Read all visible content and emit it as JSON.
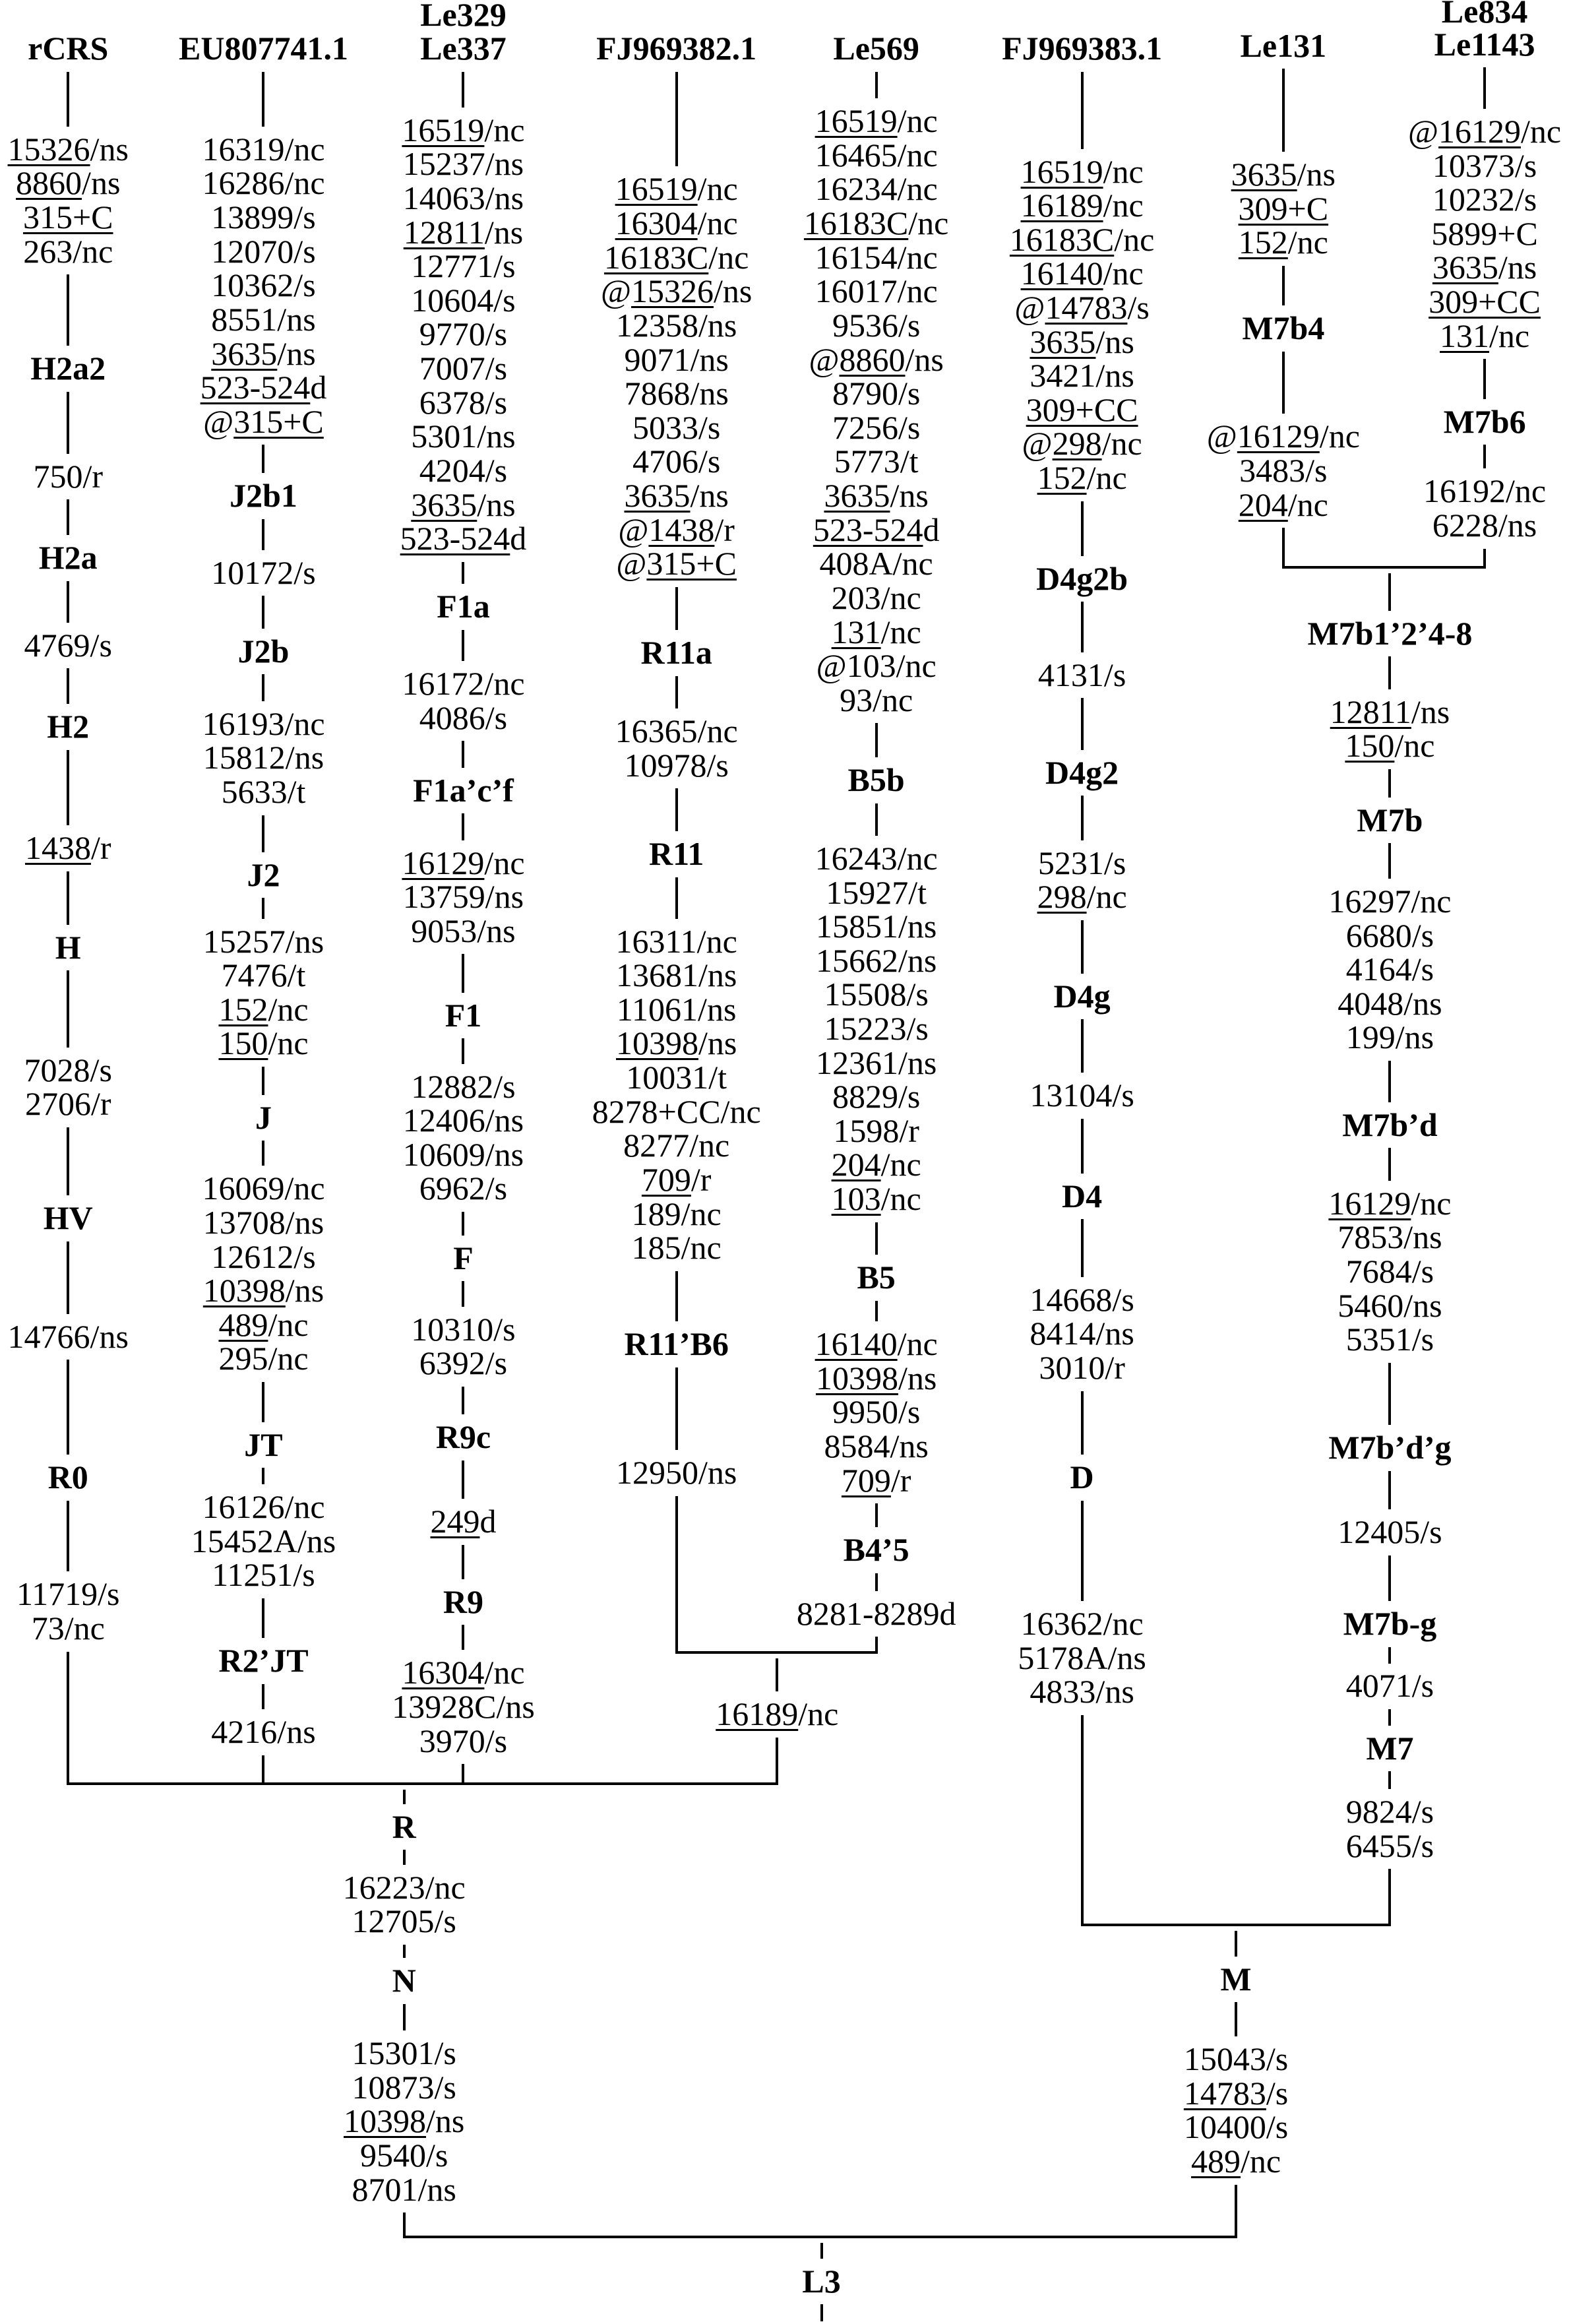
{
  "colors": {
    "ink": "#000000",
    "background": "#ffffff"
  },
  "leaves": [
    {
      "id": "rcrs",
      "header": [
        "rCRS"
      ],
      "items": [
        {
          "muts": [
            {
              "m": "15326/ns",
              "u": "15326"
            },
            {
              "m": "8860/ns",
              "u": "8860"
            },
            {
              "m": "315+C",
              "u": "315+C"
            },
            "263/nc"
          ]
        },
        {
          "node": "H2a2"
        },
        {
          "muts": [
            "750/r"
          ]
        },
        {
          "node": "H2a"
        },
        {
          "muts": [
            "4769/s"
          ]
        },
        {
          "node": "H2"
        },
        {
          "muts": [
            {
              "m": "1438/r",
              "u": "1438"
            }
          ]
        },
        {
          "node": "H"
        },
        {
          "muts": [
            "7028/s",
            "2706/r"
          ]
        },
        {
          "node": "HV"
        },
        {
          "muts": [
            "14766/ns"
          ]
        },
        {
          "node": "R0"
        },
        {
          "muts": [
            "11719/s",
            "73/nc"
          ]
        }
      ]
    },
    {
      "id": "eu807741",
      "header": [
        "EU807741.1"
      ],
      "items": [
        {
          "muts": [
            "16319/nc",
            "16286/nc",
            "13899/s",
            "12070/s",
            "10362/s",
            "8551/ns",
            {
              "m": "3635/ns",
              "u": "3635"
            },
            {
              "m": "523-524d",
              "u": "523-524"
            },
            {
              "m": "@315+C",
              "u": "315+C"
            }
          ]
        },
        {
          "node": "J2b1"
        },
        {
          "muts": [
            "10172/s"
          ]
        },
        {
          "node": "J2b"
        },
        {
          "muts": [
            "16193/nc",
            "15812/ns",
            "5633/t"
          ]
        },
        {
          "node": "J2"
        },
        {
          "muts": [
            "15257/ns",
            "7476/t",
            {
              "m": "152/nc",
              "u": "152"
            },
            {
              "m": "150/nc",
              "u": "150"
            }
          ]
        },
        {
          "node": "J"
        },
        {
          "muts": [
            "16069/nc",
            "13708/ns",
            "12612/s",
            {
              "m": "10398/ns",
              "u": "10398"
            },
            {
              "m": "489/nc",
              "u": "489"
            },
            "295/nc"
          ]
        },
        {
          "node": "JT"
        },
        {
          "muts": [
            "16126/nc",
            "15452A/ns",
            "11251/s"
          ]
        },
        {
          "node": "R2’JT"
        },
        {
          "muts": [
            "4216/ns"
          ]
        }
      ]
    },
    {
      "id": "le329",
      "header": [
        "Le329",
        "Le337"
      ],
      "items": [
        {
          "muts": [
            {
              "m": "16519/nc",
              "u": "16519"
            },
            "15237/ns",
            "14063/ns",
            {
              "m": "12811/ns",
              "u": "12811"
            },
            "12771/s",
            "10604/s",
            "9770/s",
            "7007/s",
            "6378/s",
            "5301/ns",
            "4204/s",
            {
              "m": "3635/ns",
              "u": "3635"
            },
            {
              "m": "523-524d",
              "u": "523-524"
            }
          ]
        },
        {
          "node": "F1a"
        },
        {
          "muts": [
            "16172/nc",
            "4086/s"
          ]
        },
        {
          "node": "F1a’c’f"
        },
        {
          "muts": [
            {
              "m": "16129/nc",
              "u": "16129"
            },
            "13759/ns",
            "9053/ns"
          ]
        },
        {
          "node": "F1"
        },
        {
          "muts": [
            "12882/s",
            "12406/ns",
            "10609/ns",
            "6962/s"
          ]
        },
        {
          "node": "F"
        },
        {
          "muts": [
            "10310/s",
            "6392/s"
          ]
        },
        {
          "node": "R9c"
        },
        {
          "muts": [
            {
              "m": "249d",
              "u": "249"
            }
          ]
        },
        {
          "node": "R9"
        },
        {
          "muts": [
            {
              "m": "16304/nc",
              "u": "16304"
            },
            "13928C/ns",
            "3970/s"
          ]
        }
      ]
    },
    {
      "id": "fj969382",
      "header": [
        "FJ969382.1"
      ],
      "items": [
        {
          "muts": [
            {
              "m": "16519/nc",
              "u": "16519"
            },
            {
              "m": "16304/nc",
              "u": "16304"
            },
            {
              "m": "16183C/nc",
              "u": "16183C"
            },
            {
              "m": "@15326/ns",
              "u": "15326"
            },
            "12358/ns",
            "9071/ns",
            "7868/ns",
            "5033/s",
            "4706/s",
            {
              "m": "3635/ns",
              "u": "3635"
            },
            {
              "m": "@1438/r",
              "u": "1438"
            },
            {
              "m": "@315+C",
              "u": "315+C"
            }
          ]
        },
        {
          "node": "R11a"
        },
        {
          "muts": [
            "16365/nc",
            "10978/s"
          ]
        },
        {
          "node": "R11"
        },
        {
          "muts": [
            "16311/nc",
            "13681/ns",
            "11061/ns",
            {
              "m": "10398/ns",
              "u": "10398"
            },
            "10031/t",
            "8278+CC/nc",
            "8277/nc",
            {
              "m": "709/r",
              "u": "709"
            },
            "189/nc",
            "185/nc"
          ]
        },
        {
          "node": "R11’B6"
        },
        {
          "muts": [
            "12950/ns"
          ]
        }
      ]
    },
    {
      "id": "le569",
      "header": [
        "Le569"
      ],
      "items": [
        {
          "muts": [
            {
              "m": "16519/nc",
              "u": "16519"
            },
            "16465/nc",
            "16234/nc",
            {
              "m": "16183C/nc",
              "u": "16183C"
            },
            "16154/nc",
            "16017/nc",
            "9536/s",
            {
              "m": "@8860/ns",
              "u": "8860"
            },
            "8790/s",
            "7256/s",
            "5773/t",
            {
              "m": "3635/ns",
              "u": "3635"
            },
            {
              "m": "523-524d",
              "u": "523-524"
            },
            "408A/nc",
            "203/nc",
            {
              "m": "131/nc",
              "u": "131"
            },
            "@103/nc",
            "93/nc"
          ]
        },
        {
          "node": "B5b"
        },
        {
          "muts": [
            "16243/nc",
            "15927/t",
            "15851/ns",
            "15662/ns",
            "15508/s",
            "15223/s",
            "12361/ns",
            "8829/s",
            "1598/r",
            {
              "m": "204/nc",
              "u": "204"
            },
            {
              "m": "103/nc",
              "u": "103"
            }
          ]
        },
        {
          "node": "B5"
        },
        {
          "muts": [
            {
              "m": "16140/nc",
              "u": "16140"
            },
            {
              "m": "10398/ns",
              "u": "10398"
            },
            "9950/s",
            "8584/ns",
            {
              "m": "709/r",
              "u": "709"
            }
          ]
        },
        {
          "node": "B4’5"
        },
        {
          "muts": [
            "8281-8289d"
          ]
        }
      ]
    },
    {
      "id": "fj969383",
      "header": [
        "FJ969383.1"
      ],
      "items": [
        {
          "muts": [
            {
              "m": "16519/nc",
              "u": "16519"
            },
            {
              "m": "16189/nc",
              "u": "16189"
            },
            {
              "m": "16183C/nc",
              "u": "16183C"
            },
            {
              "m": "16140/nc",
              "u": "16140"
            },
            {
              "m": "@14783/s",
              "u": "14783"
            },
            {
              "m": "3635/ns",
              "u": "3635"
            },
            "3421/ns",
            {
              "m": "309+CC",
              "u": "309+CC"
            },
            {
              "m": "@298/nc",
              "u": "298"
            },
            {
              "m": "152/nc",
              "u": "152"
            }
          ]
        },
        {
          "node": "D4g2b"
        },
        {
          "muts": [
            "4131/s"
          ]
        },
        {
          "node": "D4g2"
        },
        {
          "muts": [
            "5231/s",
            {
              "m": "298/nc",
              "u": "298"
            }
          ]
        },
        {
          "node": "D4g"
        },
        {
          "muts": [
            "13104/s"
          ]
        },
        {
          "node": "D4"
        },
        {
          "muts": [
            "14668/s",
            "8414/ns",
            "3010/r"
          ]
        },
        {
          "node": "D"
        },
        {
          "muts": [
            "16362/nc",
            "5178A/ns",
            "4833/ns"
          ]
        }
      ]
    },
    {
      "id": "le131",
      "header": [
        "Le131"
      ],
      "items": [
        {
          "muts": [
            {
              "m": "3635/ns",
              "u": "3635"
            },
            {
              "m": "309+C",
              "u": "309+C"
            },
            {
              "m": "152/nc",
              "u": "152"
            }
          ]
        },
        {
          "node": "M7b4"
        },
        {
          "muts": [
            {
              "m": "@16129/nc",
              "u": "16129"
            },
            "3483/s",
            {
              "m": "204/nc",
              "u": "204"
            }
          ]
        }
      ]
    },
    {
      "id": "le834",
      "header": [
        "Le834",
        "Le1143"
      ],
      "items": [
        {
          "muts": [
            {
              "m": "@16129/nc",
              "u": "16129"
            },
            "10373/s",
            "10232/s",
            "5899+C",
            {
              "m": "3635/ns",
              "u": "3635"
            },
            {
              "m": "309+CC",
              "u": "309+CC"
            },
            {
              "m": "131/nc",
              "u": "131"
            }
          ]
        },
        {
          "node": "M7b6"
        },
        {
          "muts": [
            "16192/nc",
            "6228/ns"
          ]
        }
      ]
    }
  ],
  "internal": [
    {
      "id": "m7b",
      "items": [
        {
          "node": "M7b1’2’4-8"
        },
        {
          "muts": [
            {
              "m": "12811/ns",
              "u": "12811"
            },
            {
              "m": "150/nc",
              "u": "150"
            }
          ]
        },
        {
          "node": "M7b"
        },
        {
          "muts": [
            "16297/nc",
            "6680/s",
            "4164/s",
            "4048/ns",
            "199/ns"
          ]
        },
        {
          "node": "M7b’d"
        },
        {
          "muts": [
            {
              "m": "16129/nc",
              "u": "16129"
            },
            "7853/ns",
            "7684/s",
            "5460/ns",
            "5351/s"
          ]
        },
        {
          "node": "M7b’d’g"
        },
        {
          "muts": [
            "12405/s"
          ]
        },
        {
          "node": "M7b-g"
        },
        {
          "muts": [
            "4071/s"
          ]
        },
        {
          "node": "M7"
        },
        {
          "muts": [
            "9824/s",
            "6455/s"
          ]
        }
      ]
    },
    {
      "id": "r11b4",
      "items": [
        {
          "muts": [
            {
              "m": "16189/nc",
              "u": "16189"
            }
          ]
        }
      ]
    },
    {
      "id": "r",
      "items": [
        {
          "node": "R"
        },
        {
          "muts": [
            "16223/nc",
            "12705/s"
          ]
        },
        {
          "node": "N"
        },
        {
          "muts": [
            "15301/s",
            "10873/s",
            {
              "m": "10398/ns",
              "u": "10398"
            },
            "9540/s",
            "8701/ns"
          ]
        }
      ]
    },
    {
      "id": "m",
      "items": [
        {
          "node": "M"
        },
        {
          "muts": [
            "15043/s",
            {
              "m": "14783/s",
              "u": "14783"
            },
            "10400/s",
            {
              "m": "489/nc",
              "u": "489"
            }
          ]
        }
      ]
    },
    {
      "id": "l3",
      "items": [
        {
          "node": "L3"
        }
      ]
    }
  ]
}
